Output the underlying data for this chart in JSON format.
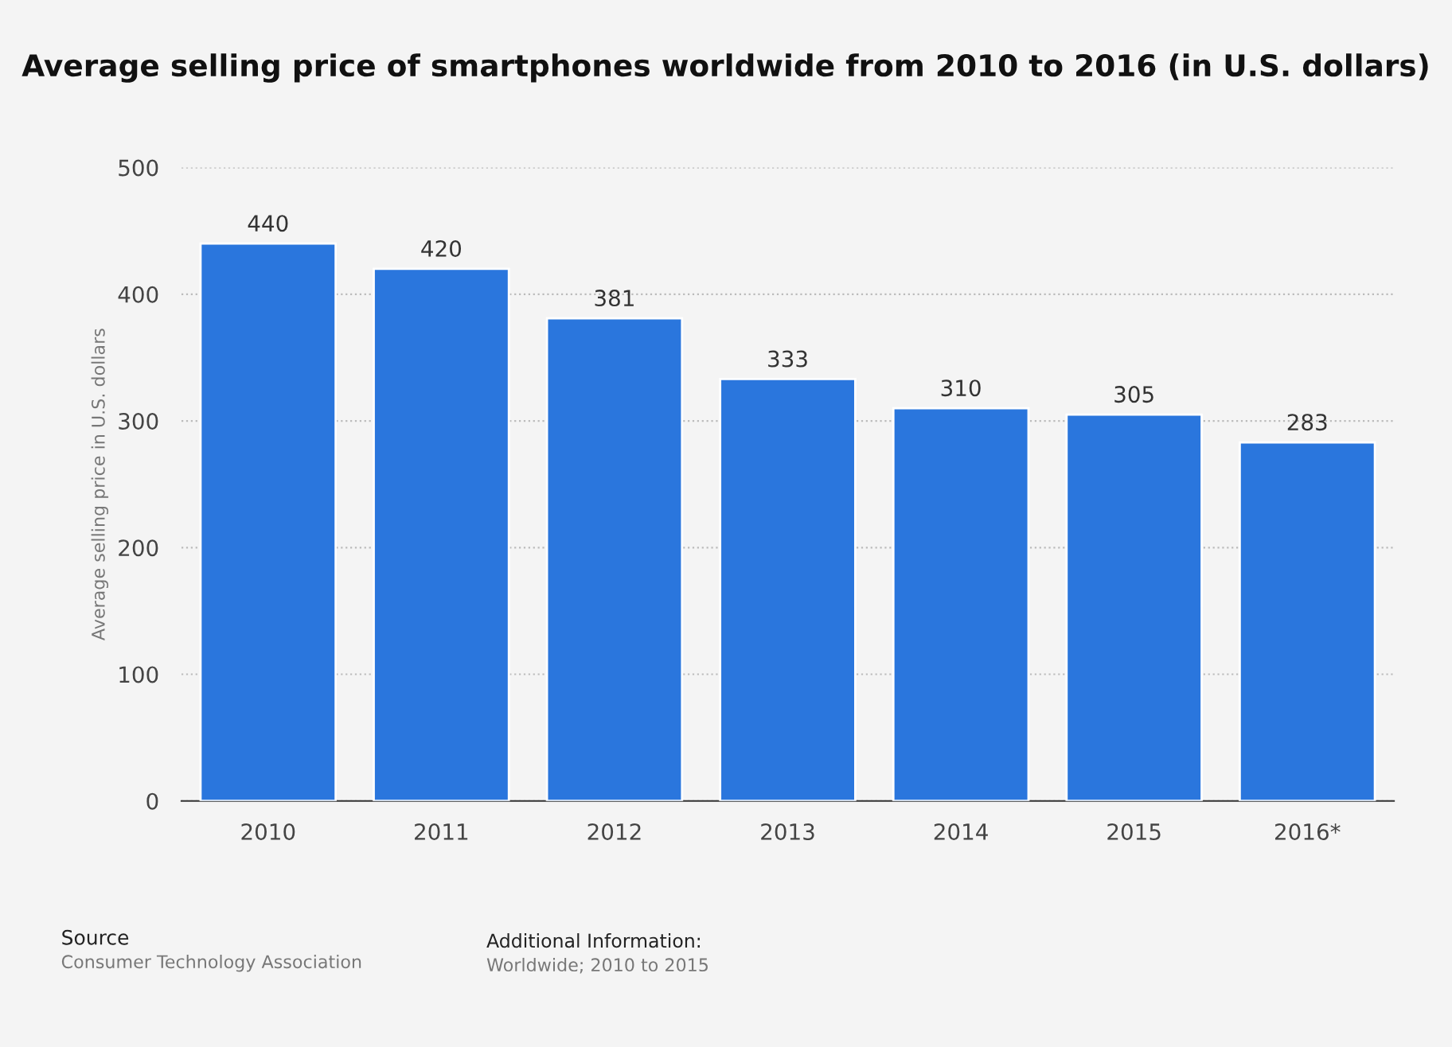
{
  "chart_data": {
    "type": "bar",
    "title": "Average selling price of smartphones worldwide from 2010 to 2016 (in U.S. dollars)",
    "ylabel": "Average selling price in U.S. dollars",
    "categories": [
      "2010",
      "2011",
      "2012",
      "2013",
      "2014",
      "2015",
      "2016*"
    ],
    "values": [
      440,
      420,
      381,
      333,
      310,
      305,
      283
    ],
    "color": "#2a76dd",
    "ylim": [
      0,
      500
    ],
    "yticks": [
      0,
      100,
      200,
      300,
      400,
      500
    ],
    "grid": "y",
    "data_labels": true,
    "annotations": [
      "Source",
      "Consumer Technology Association",
      "Additional Information:",
      "Worldwide; 2010 to 2015"
    ]
  }
}
